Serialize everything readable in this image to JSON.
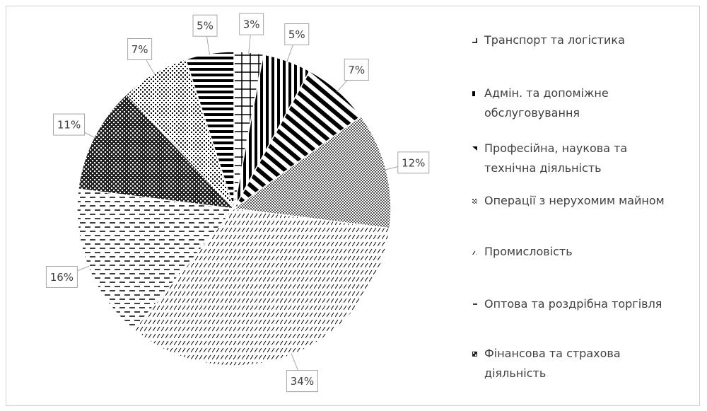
{
  "chart_data": {
    "type": "pie",
    "categories": [
      "Транспорт та логістика",
      "Адмін. та допоміжне обслуговування",
      "Професійна, наукова та технічна діяльність",
      "Операції з нерухомим майном",
      "Промисловість",
      "Оптова та роздрібна торгівля",
      "Фінансова та страхова діяльність",
      null,
      null
    ],
    "values": [
      3,
      5,
      7,
      12,
      34,
      16,
      11,
      7,
      5
    ],
    "value_labels": [
      "3%",
      "5%",
      "7%",
      "12%",
      "34%",
      "16%",
      "11%",
      "7%",
      "5%"
    ],
    "legend": "right"
  }
}
